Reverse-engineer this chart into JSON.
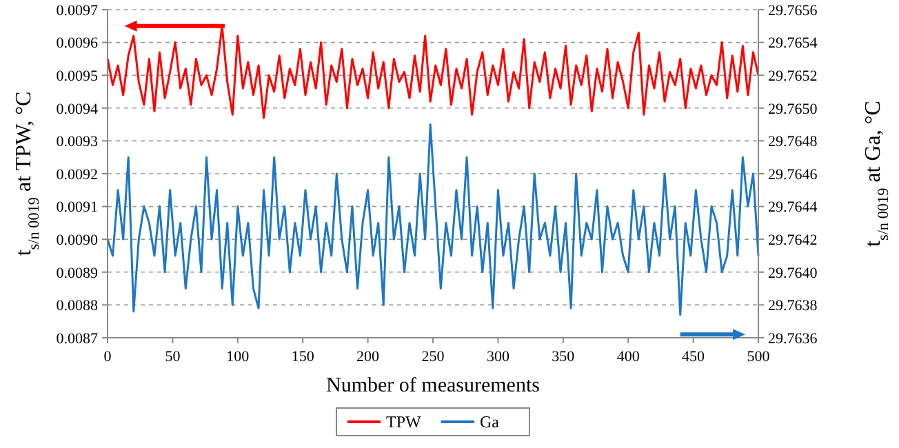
{
  "chart_data": {
    "type": "line",
    "xlabel": "Number of measurements",
    "ylabel": "t$_{s/n 0019}$ at TPW, °C",
    "y2label": "t$_{s/n 0019}$ at Ga, °C",
    "x": [
      0,
      4,
      8,
      12,
      16,
      20,
      24,
      28,
      32,
      36,
      40,
      44,
      48,
      52,
      56,
      60,
      64,
      68,
      72,
      76,
      80,
      84,
      88,
      92,
      96,
      100,
      104,
      108,
      112,
      116,
      120,
      124,
      128,
      132,
      136,
      140,
      144,
      148,
      152,
      156,
      160,
      164,
      168,
      172,
      176,
      180,
      184,
      188,
      192,
      196,
      200,
      204,
      208,
      212,
      216,
      220,
      224,
      228,
      232,
      236,
      240,
      244,
      248,
      252,
      256,
      260,
      264,
      268,
      272,
      276,
      280,
      284,
      288,
      292,
      296,
      300,
      304,
      308,
      312,
      316,
      320,
      324,
      328,
      332,
      336,
      340,
      344,
      348,
      352,
      356,
      360,
      364,
      368,
      372,
      376,
      380,
      384,
      388,
      392,
      396,
      400,
      404,
      408,
      412,
      416,
      420,
      424,
      428,
      432,
      436,
      440,
      444,
      448,
      452,
      456,
      460,
      464,
      468,
      472,
      476,
      480,
      484,
      488,
      492,
      496,
      500
    ],
    "series": [
      {
        "name": "TPW",
        "color": "#ff0000",
        "values": [
          0.00955,
          0.00947,
          0.00953,
          0.00944,
          0.00956,
          0.00962,
          0.00948,
          0.00941,
          0.00955,
          0.00939,
          0.00957,
          0.00943,
          0.00951,
          0.0096,
          0.00946,
          0.00952,
          0.00941,
          0.00955,
          0.00947,
          0.0095,
          0.00944,
          0.00952,
          0.00965,
          0.00948,
          0.00938,
          0.00962,
          0.00946,
          0.00954,
          0.00944,
          0.00953,
          0.00937,
          0.0095,
          0.00945,
          0.00956,
          0.00943,
          0.00952,
          0.00947,
          0.00958,
          0.00944,
          0.00954,
          0.00946,
          0.0096,
          0.00941,
          0.00953,
          0.00948,
          0.00958,
          0.0094,
          0.00955,
          0.00947,
          0.00952,
          0.00943,
          0.00957,
          0.00946,
          0.00954,
          0.0094,
          0.00955,
          0.00948,
          0.00951,
          0.00943,
          0.00956,
          0.00945,
          0.00962,
          0.00942,
          0.00953,
          0.00947,
          0.00958,
          0.00941,
          0.00952,
          0.00946,
          0.00955,
          0.00938,
          0.00951,
          0.00957,
          0.00944,
          0.00953,
          0.00947,
          0.00958,
          0.00942,
          0.00951,
          0.00946,
          0.00961,
          0.0094,
          0.00954,
          0.00948,
          0.00957,
          0.00943,
          0.00952,
          0.00946,
          0.00959,
          0.00941,
          0.00953,
          0.00947,
          0.00956,
          0.00939,
          0.00952,
          0.00945,
          0.00958,
          0.00943,
          0.00954,
          0.00948,
          0.0094,
          0.00957,
          0.00963,
          0.00938,
          0.00953,
          0.00946,
          0.00957,
          0.00942,
          0.00951,
          0.00947,
          0.00955,
          0.0094,
          0.00952,
          0.00946,
          0.00953,
          0.00944,
          0.0095,
          0.00947,
          0.0096,
          0.00943,
          0.00956,
          0.00945,
          0.00959,
          0.00944,
          0.00957,
          0.0095
        ]
      },
      {
        "name": "Ga",
        "color": "#1f77c4",
        "axis": "y2",
        "values": [
          29.7642,
          29.7641,
          29.7645,
          29.7642,
          29.7647,
          29.76376,
          29.7642,
          29.7644,
          29.7643,
          29.7641,
          29.7644,
          29.764,
          29.7645,
          29.7641,
          29.7643,
          29.7639,
          29.7642,
          29.7644,
          29.764,
          29.7647,
          29.7642,
          29.7645,
          29.7639,
          29.7643,
          29.7638,
          29.7644,
          29.7641,
          29.7643,
          29.7639,
          29.76378,
          29.7645,
          29.7641,
          29.7647,
          29.7642,
          29.7644,
          29.764,
          29.7643,
          29.7641,
          29.7645,
          29.7642,
          29.7644,
          29.764,
          29.7643,
          29.7641,
          29.7646,
          29.7642,
          29.764,
          29.7644,
          29.7639,
          29.7643,
          29.7645,
          29.7641,
          29.7643,
          29.7638,
          29.7647,
          29.7642,
          29.7644,
          29.764,
          29.7643,
          29.7641,
          29.7646,
          29.7642,
          29.7649,
          29.7644,
          29.7639,
          29.7643,
          29.7641,
          29.7645,
          29.7642,
          29.7647,
          29.7641,
          29.7644,
          29.764,
          29.7643,
          29.76378,
          29.7645,
          29.7641,
          29.7643,
          29.7639,
          29.7642,
          29.7644,
          29.764,
          29.7646,
          29.7642,
          29.7643,
          29.7641,
          29.7644,
          29.764,
          29.7643,
          29.76378,
          29.7646,
          29.7641,
          29.7643,
          29.7642,
          29.7645,
          29.764,
          29.7644,
          29.7642,
          29.7643,
          29.7641,
          29.764,
          29.7645,
          29.7642,
          29.7644,
          29.764,
          29.7643,
          29.7641,
          29.7646,
          29.7642,
          29.7644,
          29.76374,
          29.7643,
          29.7641,
          29.7645,
          29.7642,
          29.764,
          29.7644,
          29.7643,
          29.764,
          29.7641,
          29.7645,
          29.7641,
          29.7647,
          29.7644,
          29.7646,
          29.7641
        ]
      }
    ],
    "xlim": [
      0,
      500
    ],
    "xticks": [
      0,
      50,
      100,
      150,
      200,
      250,
      300,
      350,
      400,
      450,
      500
    ],
    "ylim": [
      0.0087,
      0.0097
    ],
    "yticks": [
      0.0087,
      0.0088,
      0.0089,
      {
        "value": 0.009,
        "label": "0.0090"
      },
      0.0091,
      0.0092,
      0.0093,
      0.0094,
      0.0095,
      0.0096,
      0.0097
    ],
    "y2lim": [
      29.7636,
      29.7656
    ],
    "y2ticks": [
      29.7636,
      29.7638,
      {
        "value": 29.764,
        "label": "29.7640"
      },
      29.7642,
      29.7644,
      29.7646,
      29.7648,
      {
        "value": 29.765,
        "label": "29.7650"
      },
      29.7652,
      29.7654,
      29.7656
    ],
    "grid": "y",
    "legend": "bottom",
    "marker": "none",
    "line_style": "solid"
  }
}
